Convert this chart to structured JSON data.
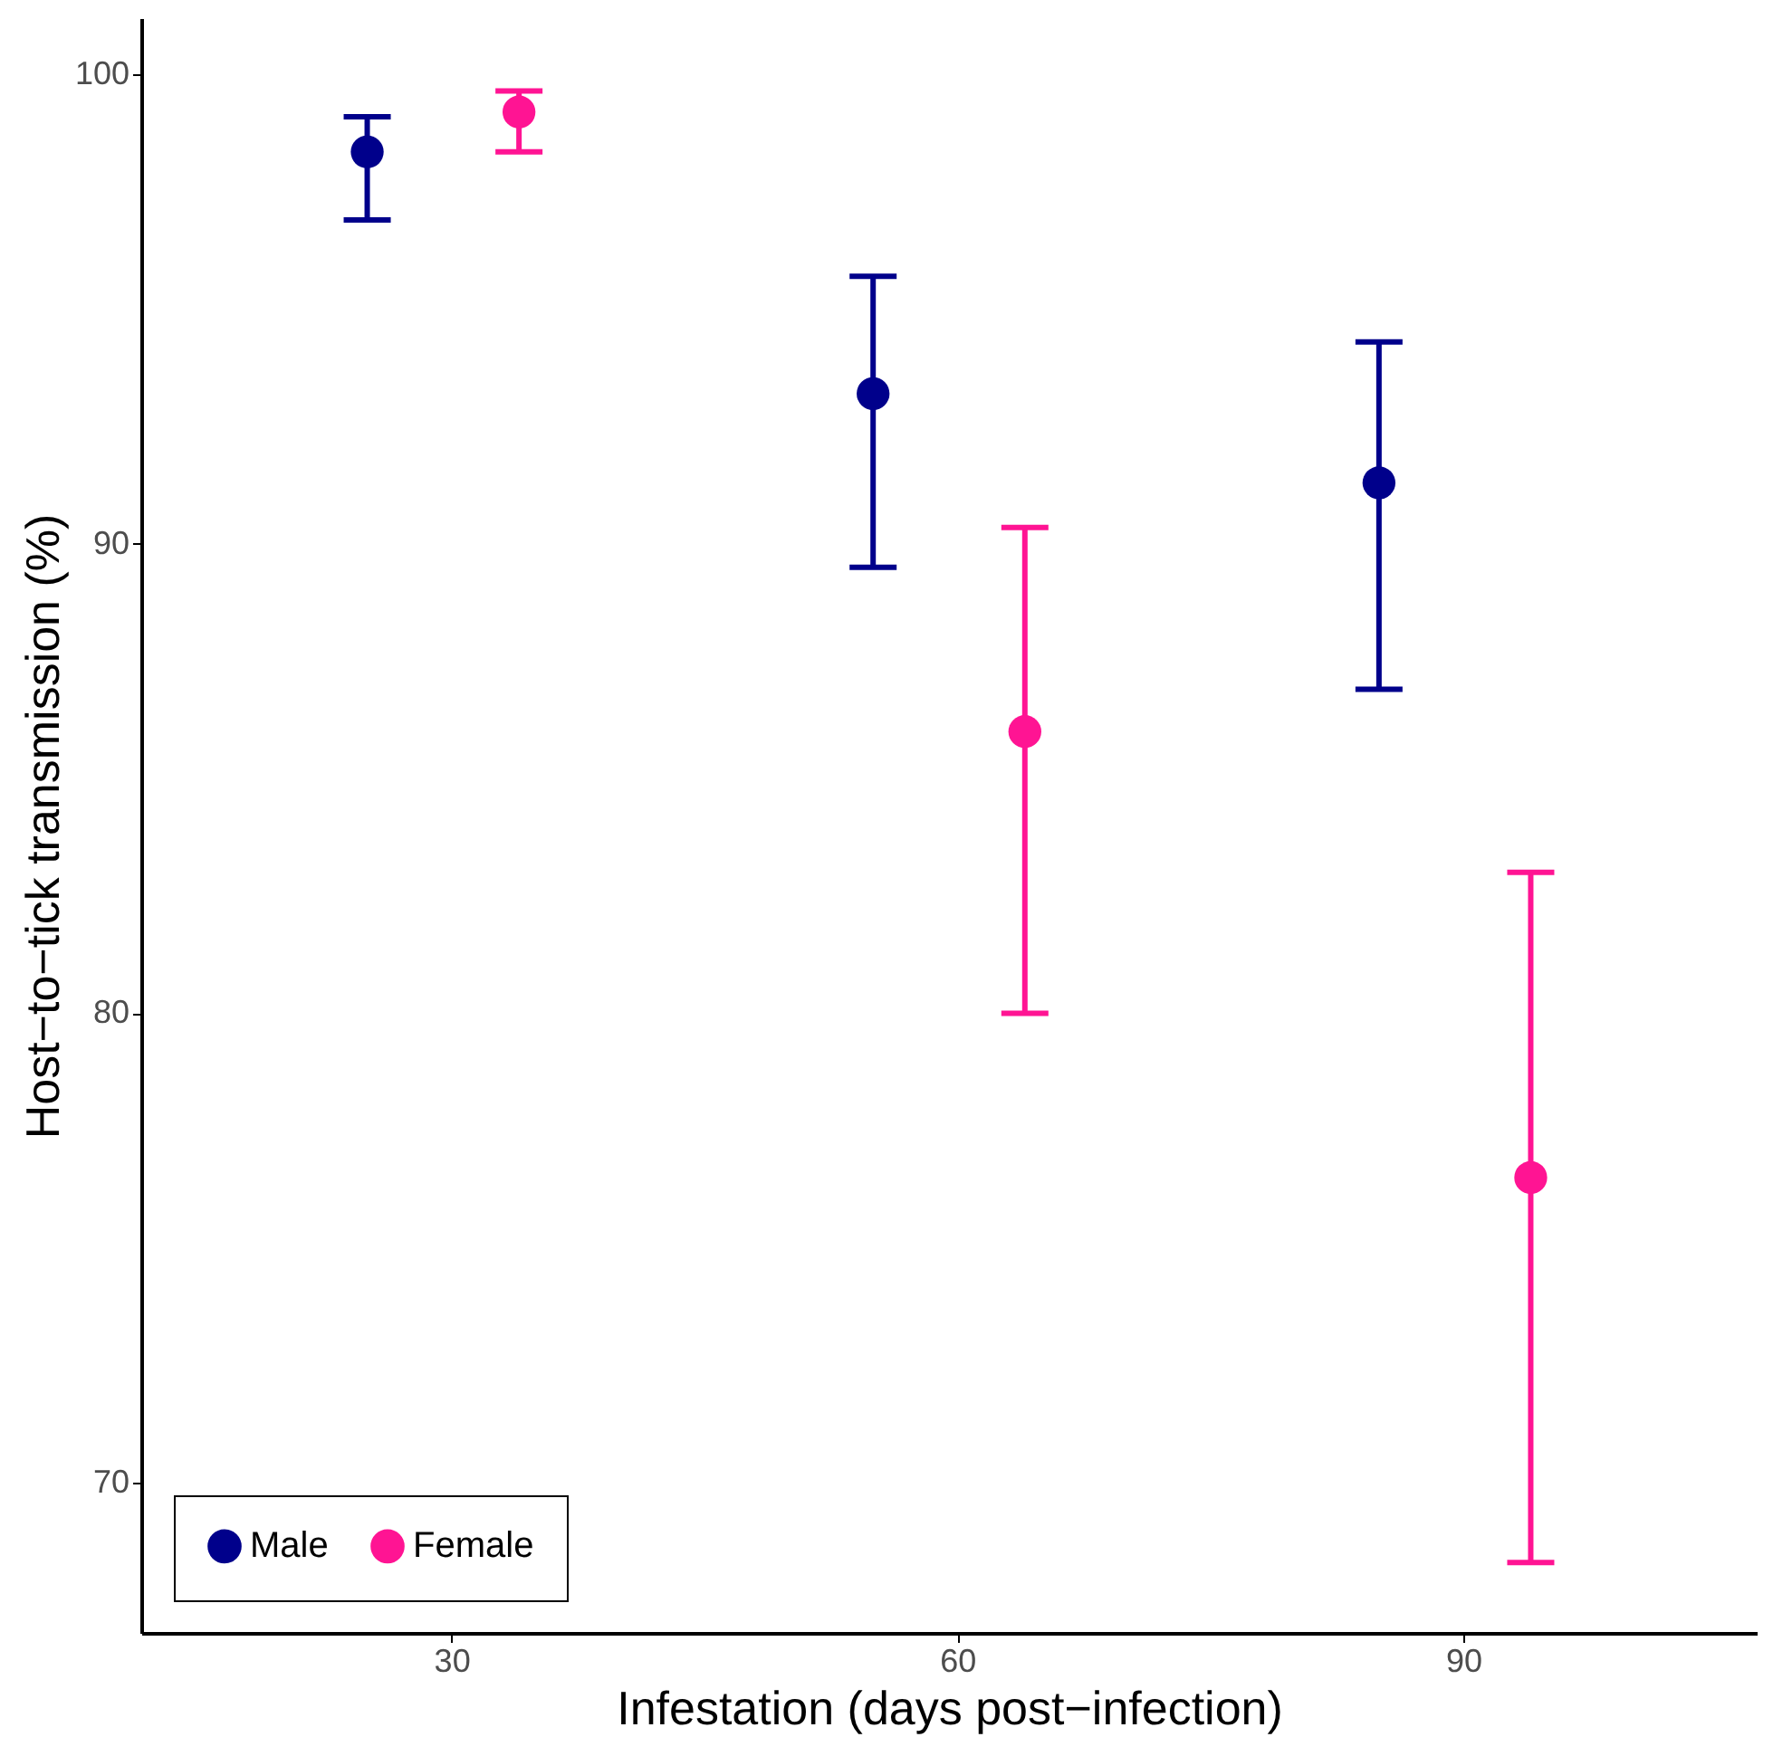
{
  "chart_data": {
    "type": "scatter",
    "xlabel": "Infestation (days post−infection)",
    "ylabel": "Host−to−tick transmission (%)",
    "series": [
      {
        "name": "Male",
        "color": "#00008b",
        "x": [
          25,
          55,
          85
        ],
        "values": [
          98.35,
          93.2,
          91.3
        ],
        "errors": [
          [
            96.9,
            99.1
          ],
          [
            89.5,
            95.7
          ],
          [
            86.9,
            94.3
          ]
        ]
      },
      {
        "name": "Female",
        "color": "#ff1493",
        "x": [
          34,
          64,
          94
        ],
        "values": [
          99.2,
          86.0,
          76.5
        ],
        "errors": [
          [
            98.35,
            99.65
          ],
          [
            80.0,
            90.35
          ],
          [
            68.3,
            83.0
          ]
        ]
      }
    ],
    "xlim": [
      11.6,
      107.4
    ],
    "xticks": [
      30,
      60,
      90
    ],
    "ylim": [
      66.8,
      101.2
    ],
    "yticks": [
      70,
      80,
      90,
      100
    ],
    "grid": false,
    "legend": "bottom left",
    "marker": "circle"
  }
}
